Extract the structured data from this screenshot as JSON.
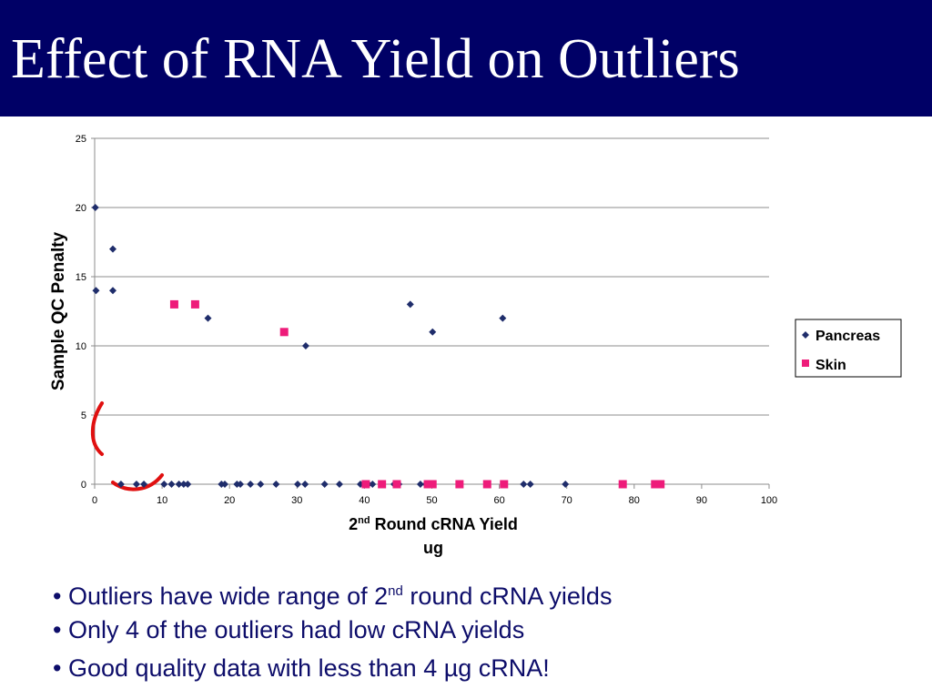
{
  "slide": {
    "title": "Effect of RNA Yield on Outliers",
    "bullets": [
      {
        "prefix": "• Outliers have wide range of 2",
        "sup": "nd",
        "suffix": " round cRNA yields"
      },
      {
        "prefix": "• Only 4 of the outliers had low cRNA yields",
        "sup": "",
        "suffix": ""
      },
      {
        "prefix": "• Good quality data with less than 4 µg cRNA!",
        "sup": "",
        "suffix": ""
      }
    ]
  },
  "chart_data": {
    "type": "scatter",
    "title": "",
    "ylabel": "Sample QC Penalty",
    "xlabel": {
      "line1_prefix": "2",
      "line1_sup": "nd",
      "line1_suffix": " Round cRNA Yield",
      "line2": "ug"
    },
    "xlim": [
      0,
      100
    ],
    "ylim": [
      0,
      25
    ],
    "x_ticks": [
      0,
      10,
      20,
      30,
      40,
      50,
      60,
      70,
      80,
      90,
      100
    ],
    "y_ticks": [
      0,
      5,
      10,
      15,
      20,
      25
    ],
    "grid": "horizontal",
    "legend_position": "right",
    "series": [
      {
        "name": "Pancreas",
        "marker": "diamond",
        "color": "#1f2d6b",
        "points": [
          [
            0.1,
            20
          ],
          [
            0.2,
            14
          ],
          [
            2.7,
            17
          ],
          [
            2.7,
            14
          ],
          [
            16.8,
            12
          ],
          [
            31.3,
            10
          ],
          [
            46.8,
            13
          ],
          [
            50.1,
            11
          ],
          [
            60.5,
            12
          ],
          [
            3.9,
            0
          ],
          [
            6.2,
            0
          ],
          [
            7.3,
            0
          ],
          [
            10.3,
            0
          ],
          [
            11.4,
            0
          ],
          [
            12.5,
            0
          ],
          [
            13.2,
            0
          ],
          [
            13.8,
            0
          ],
          [
            18.8,
            0
          ],
          [
            19.3,
            0
          ],
          [
            21.1,
            0
          ],
          [
            21.6,
            0
          ],
          [
            23.1,
            0
          ],
          [
            24.6,
            0
          ],
          [
            26.9,
            0
          ],
          [
            30.1,
            0
          ],
          [
            31.2,
            0
          ],
          [
            34.1,
            0
          ],
          [
            36.3,
            0
          ],
          [
            39.4,
            0
          ],
          [
            39.9,
            0
          ],
          [
            40.6,
            0
          ],
          [
            41.2,
            0
          ],
          [
            44.4,
            0
          ],
          [
            45.1,
            0
          ],
          [
            48.3,
            0
          ],
          [
            49.1,
            0
          ],
          [
            49.6,
            0
          ],
          [
            63.6,
            0
          ],
          [
            64.6,
            0
          ],
          [
            69.8,
            0
          ]
        ]
      },
      {
        "name": "Skin",
        "marker": "square",
        "color": "#ee1c7a",
        "points": [
          [
            11.8,
            13
          ],
          [
            14.9,
            13
          ],
          [
            28.1,
            11
          ],
          [
            40.2,
            0
          ],
          [
            42.6,
            0
          ],
          [
            44.8,
            0
          ],
          [
            49.4,
            0
          ],
          [
            50.1,
            0
          ],
          [
            54.1,
            0
          ],
          [
            58.2,
            0
          ],
          [
            60.7,
            0
          ],
          [
            78.3,
            0
          ],
          [
            83.1,
            0
          ],
          [
            83.9,
            0
          ]
        ]
      }
    ],
    "annotation": {
      "shape": "red hand-drawn curve around low-yield outliers",
      "color": "#e01010"
    }
  }
}
